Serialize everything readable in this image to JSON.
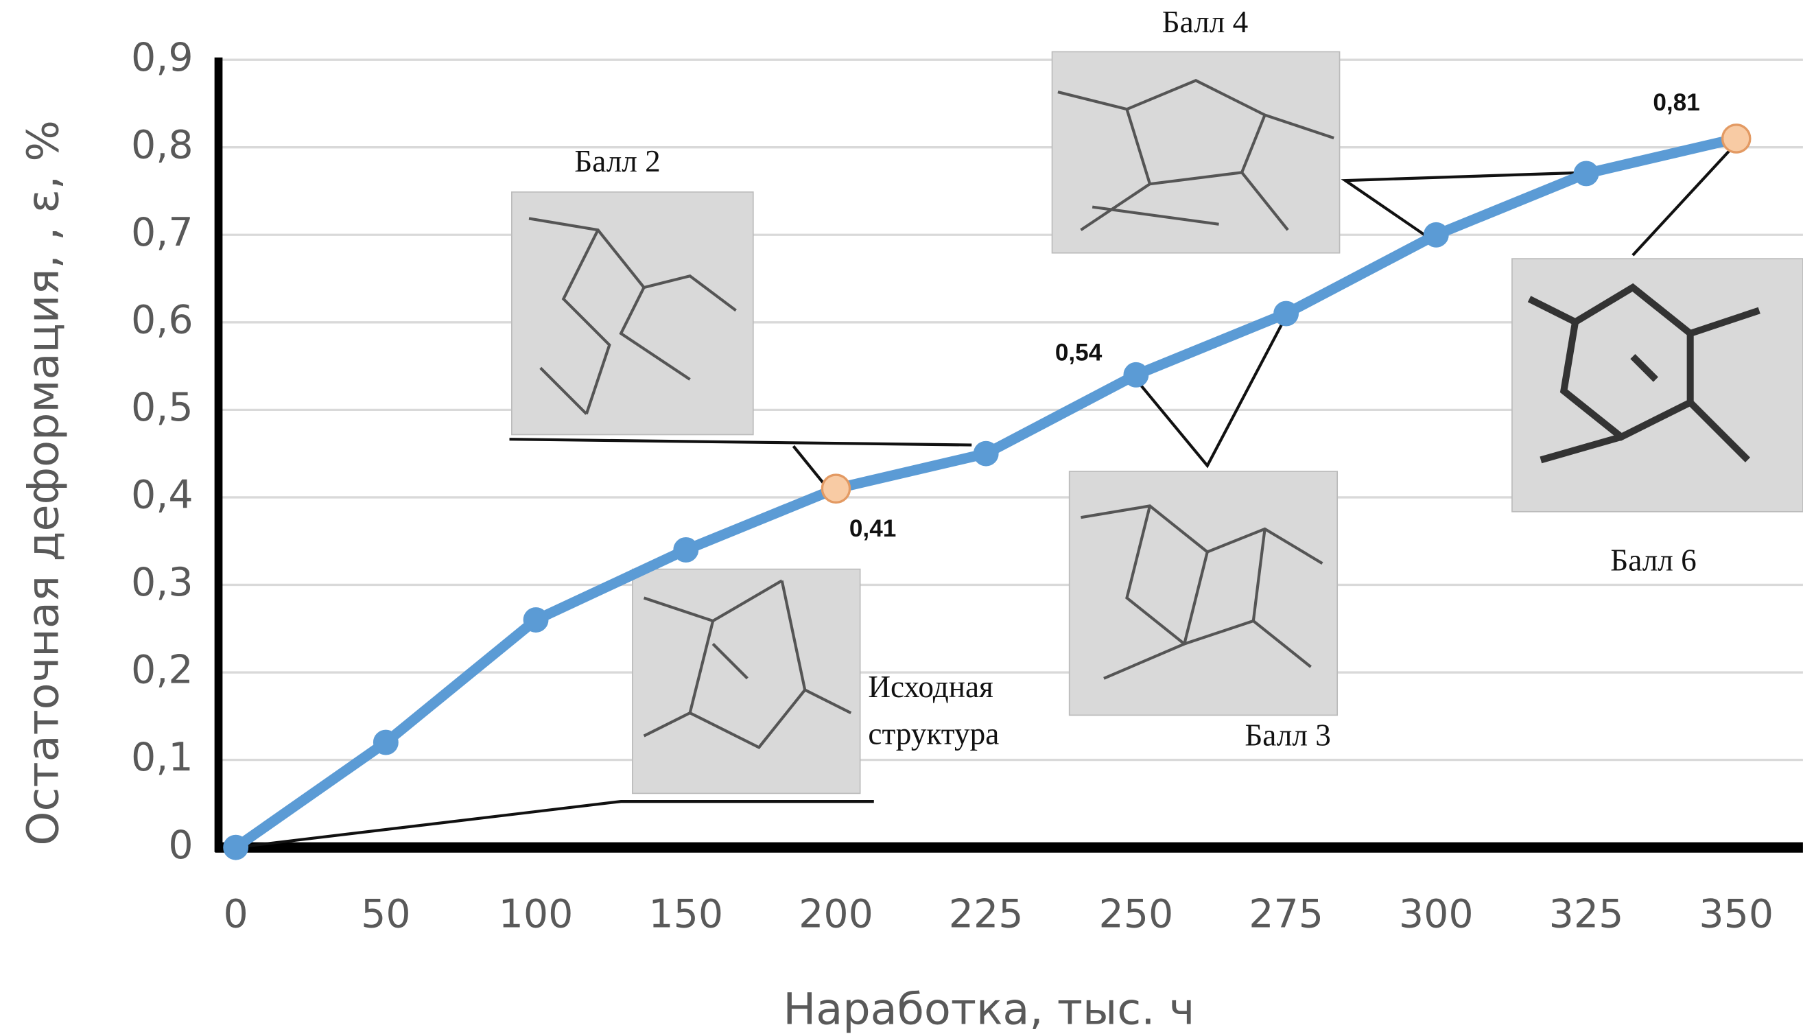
{
  "chart_data": {
    "type": "line",
    "x_label": "Наработка, тыс. ч",
    "y_label": "Остаточная деформация, , ε, %",
    "categories": [
      "0",
      "50",
      "100",
      "150",
      "200",
      "225",
      "250",
      "275",
      "300",
      "325",
      "350"
    ],
    "series": [
      {
        "color": "#5b9bd5",
        "values": [
          0,
          0.12,
          0.26,
          0.34,
          0.41,
          0.45,
          0.54,
          0.61,
          0.7,
          0.77,
          0.81
        ],
        "value_labels": [
          null,
          null,
          null,
          null,
          "0,41",
          null,
          "0,54",
          null,
          null,
          null,
          "0,81"
        ],
        "highlight": [
          4,
          10
        ],
        "highlight_color": "#f8cba4"
      }
    ],
    "ylim": [
      0,
      0.9
    ],
    "yticks": [
      0,
      {
        "value": 0.1,
        "label": "0,1"
      },
      {
        "value": 0.2,
        "label": "0,2"
      },
      {
        "value": 0.3,
        "label": "0,3"
      },
      {
        "value": 0.4,
        "label": "0,4"
      },
      {
        "value": 0.5,
        "label": "0,5"
      },
      {
        "value": 0.6,
        "label": "0,6"
      },
      {
        "value": 0.7,
        "label": "0,7"
      },
      {
        "value": 0.8,
        "label": "0,8"
      },
      {
        "value": 0.9,
        "label": "0,9"
      }
    ],
    "grid": true,
    "annotations": [
      {
        "lines": [
          "Исходная",
          "структура"
        ]
      },
      {
        "text": "Балл 2"
      },
      {
        "text": "Балл 3"
      },
      {
        "text": "Балл 4"
      },
      {
        "text": "Балл 6"
      }
    ]
  }
}
